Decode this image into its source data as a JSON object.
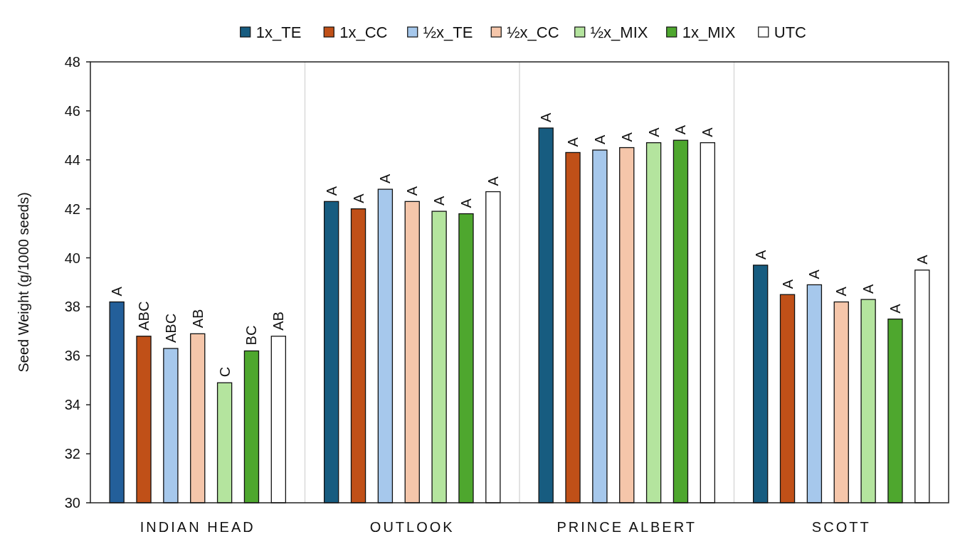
{
  "chart_data": {
    "type": "bar",
    "ylabel": "Seed Weight (g/1000 seeds)",
    "categories": [
      "INDIAN HEAD",
      "OUTLOOK",
      "PRINCE ALBERT",
      "SCOTT"
    ],
    "series": [
      {
        "name": "1x_TE",
        "color": "#175c80",
        "colors": [
          "#235f9a",
          "#175c80",
          "#175c80",
          "#175c80"
        ],
        "values": [
          38.2,
          42.3,
          45.3,
          39.7
        ],
        "value_labels": [
          "A",
          "A",
          "A",
          "A"
        ]
      },
      {
        "name": "1x_CC",
        "color": "#c05018",
        "values": [
          36.8,
          42.0,
          44.3,
          38.5
        ],
        "value_labels": [
          "ABC",
          "A",
          "A",
          "A"
        ]
      },
      {
        "name": "½x_TE",
        "color": "#a6c8ec",
        "values": [
          36.3,
          42.8,
          44.4,
          38.9
        ],
        "value_labels": [
          "ABC",
          "A",
          "A",
          "A"
        ]
      },
      {
        "name": "½x_CC",
        "color": "#f5c6aa",
        "values": [
          36.9,
          42.3,
          44.5,
          38.2
        ],
        "value_labels": [
          "AB",
          "A",
          "A",
          "A"
        ]
      },
      {
        "name": "½x_MIX",
        "color": "#b4e49e",
        "values": [
          34.9,
          41.9,
          44.7,
          38.3
        ],
        "value_labels": [
          "C",
          "A",
          "A",
          "A"
        ]
      },
      {
        "name": "1x_MIX",
        "color": "#4ea72e",
        "values": [
          36.2,
          41.8,
          44.8,
          37.5
        ],
        "value_labels": [
          "BC",
          "A",
          "A",
          "A"
        ]
      },
      {
        "name": "UTC",
        "color": "#ffffff",
        "values": [
          36.8,
          42.7,
          44.7,
          39.5
        ],
        "value_labels": [
          "AB",
          "A",
          "A",
          "A"
        ]
      }
    ],
    "ylim": [
      30,
      48
    ],
    "yticks": [
      30,
      32,
      34,
      36,
      38,
      40,
      42,
      44,
      46,
      48
    ],
    "grid": "x",
    "legend": "top"
  }
}
